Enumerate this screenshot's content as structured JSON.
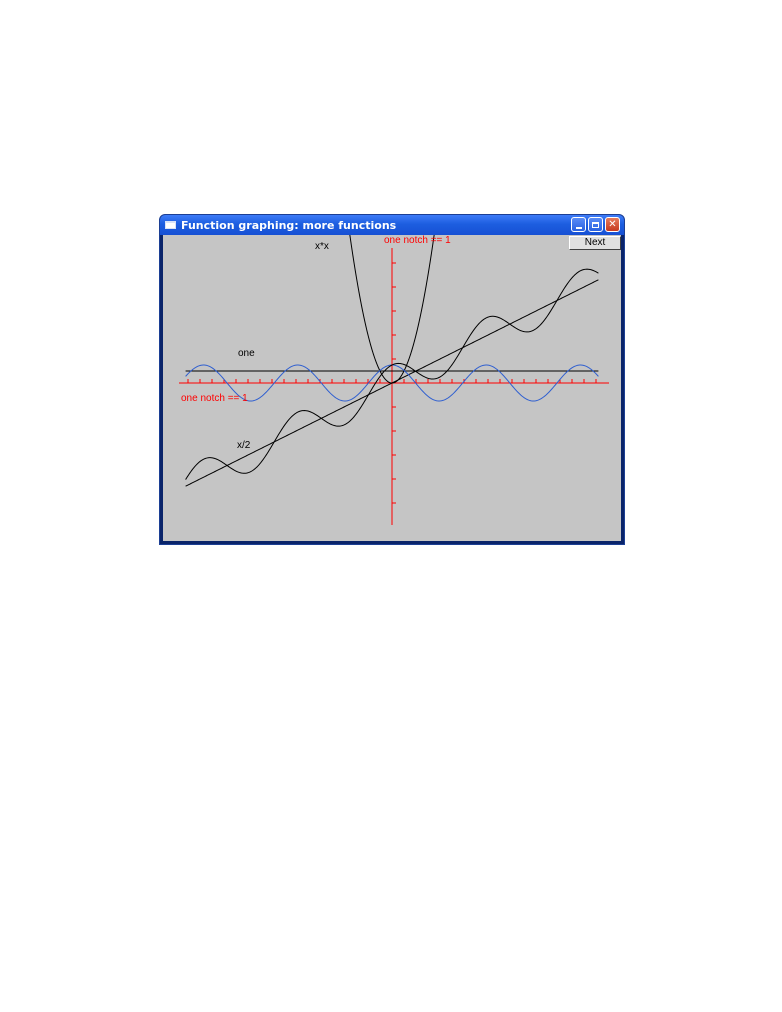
{
  "window": {
    "title": "Function graphing: more functions",
    "buttons": {
      "minimize": "minimize-icon",
      "maximize": "maximize-icon",
      "close": "close-icon"
    }
  },
  "next_button": {
    "label": "Next"
  },
  "axes": {
    "x_label": "one notch == 1",
    "y_label": "one notch == 1"
  },
  "function_labels": {
    "one": "one",
    "slope": "x/2",
    "square": "x*x"
  },
  "colors": {
    "axis": "#ff0000",
    "curve": "#000000",
    "cosine": "#2f5fd0",
    "client_bg": "#c5c5c5"
  },
  "chart_data": {
    "type": "line",
    "xlim": [
      -10,
      10
    ],
    "series": [
      {
        "name": "one",
        "expression": "1",
        "x": [
          -10,
          10
        ],
        "y": [
          1,
          1
        ]
      },
      {
        "name": "x/2",
        "expression": "x/2",
        "x": [
          -10,
          10
        ],
        "y": [
          -5,
          5
        ]
      },
      {
        "name": "x*x",
        "expression": "x*x",
        "x": [
          -3,
          -2,
          -1,
          0,
          1,
          2,
          3
        ],
        "y": [
          9,
          4,
          1,
          0,
          1,
          4,
          9
        ]
      },
      {
        "expression": "cos(x)",
        "x": [
          -10,
          -6.28,
          -3.14,
          0,
          3.14,
          6.28,
          10
        ],
        "y": [
          -0.84,
          1,
          -1,
          1,
          -1,
          1,
          -0.84
        ]
      },
      {
        "expression": "x/2 + cos(x)",
        "x": [
          -10,
          -6.28,
          -4,
          -3.14,
          0,
          3.14,
          4,
          6.28,
          10
        ],
        "y": [
          -5.84,
          -2.14,
          -2.65,
          -2.57,
          1,
          0.57,
          1.35,
          4.14,
          4.16
        ]
      }
    ]
  }
}
